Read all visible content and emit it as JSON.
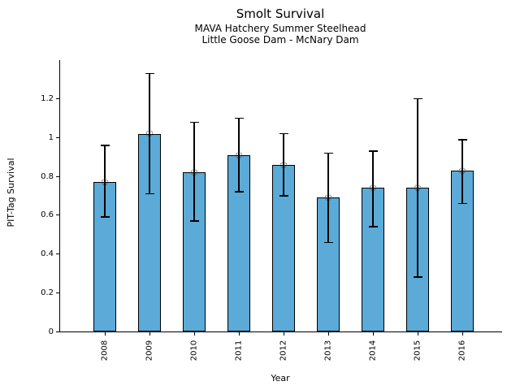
{
  "chart_data": {
    "type": "bar",
    "title": "Smolt Survival",
    "subtitle": [
      "MAVA Hatchery Summer Steelhead",
      "Little Goose Dam - McNary Dam"
    ],
    "xlabel": "Year",
    "ylabel": "PIT-Tag Survival",
    "categories": [
      "2008",
      "2009",
      "2010",
      "2011",
      "2012",
      "2013",
      "2014",
      "2015",
      "2016"
    ],
    "values": [
      0.77,
      1.02,
      0.82,
      0.91,
      0.86,
      0.69,
      0.74,
      0.74,
      0.83
    ],
    "error_low": [
      0.59,
      0.71,
      0.57,
      0.72,
      0.7,
      0.46,
      0.54,
      0.28,
      0.66
    ],
    "error_high": [
      0.96,
      1.33,
      1.08,
      1.1,
      1.02,
      0.92,
      0.93,
      1.2,
      0.99
    ],
    "ylim": [
      0,
      1.4
    ],
    "ytick_values": [
      0,
      0.2,
      0.4,
      0.6,
      0.8,
      1,
      1.2
    ],
    "ytick_labels": [
      "0",
      "0.2",
      "0.4",
      "0.6",
      "0.8",
      "1",
      "1.2"
    ],
    "grid": false,
    "legend": "none",
    "bar_color": "#5BAAD7",
    "bar_edge_color": "#000000",
    "error_color": "#000000",
    "marker": "open-circle"
  }
}
